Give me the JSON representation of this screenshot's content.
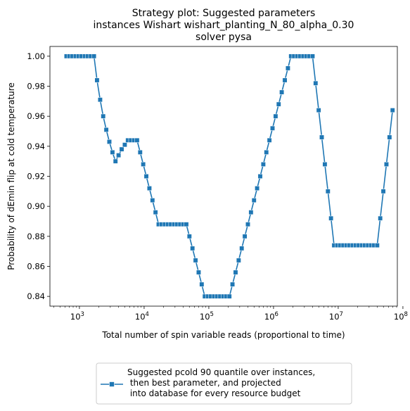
{
  "chart_data": {
    "type": "line",
    "title": [
      "Strategy plot: Suggested parameters",
      "instances Wishart wishart_planting_N_80_alpha_0.30",
      "solver pysa"
    ],
    "xlabel": "Total number of spin variable reads (proportional to time)",
    "ylabel": "Probability of dEmin flip at cold temperature",
    "x_scale": "log",
    "xlim": [
      350,
      82000000
    ],
    "ylim": [
      0.8335,
      1.0065
    ],
    "x_ticks": [
      {
        "value": 1000,
        "base": "10",
        "exp": "3"
      },
      {
        "value": 10000,
        "base": "10",
        "exp": "4"
      },
      {
        "value": 100000,
        "base": "10",
        "exp": "5"
      },
      {
        "value": 1000000,
        "base": "10",
        "exp": "6"
      },
      {
        "value": 10000000,
        "base": "10",
        "exp": "7"
      },
      {
        "value": 100000000,
        "base": "10",
        "exp": "8"
      }
    ],
    "y_ticks": [
      0.84,
      0.86,
      0.88,
      0.9,
      0.92,
      0.94,
      0.96,
      0.98,
      1.0
    ],
    "y_tick_labels": [
      "0.84",
      "0.86",
      "0.88",
      "0.90",
      "0.92",
      "0.94",
      "0.96",
      "0.98",
      "1.00"
    ],
    "grid": false,
    "legend_position": "below-center",
    "series": [
      {
        "name": "Suggested pcold 90 quantile over instances,\n then best parameter, and projected\n into database for every resource budget",
        "color": "#1f77b4",
        "marker": "square",
        "x": [
          630,
          700,
          780,
          870,
          970,
          1080,
          1210,
          1350,
          1500,
          1680,
          1870,
          2090,
          2330,
          2600,
          2900,
          3240,
          3610,
          4030,
          4500,
          5020,
          5600,
          6250,
          6970,
          7780,
          8680,
          9690,
          10810,
          12060,
          13460,
          15010,
          16750,
          18690,
          20850,
          23270,
          25960,
          28970,
          32320,
          36060,
          40240,
          44900,
          50100,
          55900,
          62370,
          69590,
          77650,
          86640,
          96670,
          107900,
          120400,
          134300,
          149800,
          167200,
          186500,
          208100,
          232200,
          259100,
          289100,
          322600,
          359900,
          401600,
          448100,
          500000,
          557900,
          622500,
          694600,
          775000,
          864700,
          964900,
          1077000,
          1201000,
          1340000,
          1496000,
          1669000,
          1862000,
          2077000,
          2318000,
          2586000,
          2886000,
          3220000,
          3593000,
          4009000,
          4473000,
          4991000,
          5569000,
          6214000,
          6933000,
          7736000,
          8632000,
          9631000,
          10750000,
          11990000,
          13380000,
          14930000,
          16660000,
          18590000,
          20740000,
          23140000,
          25820000,
          28810000,
          32150000,
          35870000,
          40020000,
          44650000,
          49820000,
          55590000,
          62030000,
          69210000
        ],
        "y": [
          1.0,
          1.0,
          1.0,
          1.0,
          1.0,
          1.0,
          1.0,
          1.0,
          1.0,
          1.0,
          0.984,
          0.971,
          0.96,
          0.951,
          0.943,
          0.936,
          0.93,
          0.934,
          0.938,
          0.941,
          0.944,
          0.944,
          0.944,
          0.944,
          0.936,
          0.928,
          0.92,
          0.912,
          0.904,
          0.896,
          0.888,
          0.888,
          0.888,
          0.888,
          0.888,
          0.888,
          0.888,
          0.888,
          0.888,
          0.888,
          0.88,
          0.872,
          0.864,
          0.856,
          0.848,
          0.84,
          0.84,
          0.84,
          0.84,
          0.84,
          0.84,
          0.84,
          0.84,
          0.84,
          0.848,
          0.856,
          0.864,
          0.872,
          0.88,
          0.888,
          0.896,
          0.904,
          0.912,
          0.92,
          0.928,
          0.936,
          0.944,
          0.952,
          0.96,
          0.968,
          0.976,
          0.984,
          0.992,
          1.0,
          1.0,
          1.0,
          1.0,
          1.0,
          1.0,
          1.0,
          1.0,
          0.982,
          0.964,
          0.946,
          0.928,
          0.91,
          0.892,
          0.874,
          0.874,
          0.874,
          0.874,
          0.874,
          0.874,
          0.874,
          0.874,
          0.874,
          0.874,
          0.874,
          0.874,
          0.874,
          0.874,
          0.874,
          0.892,
          0.91,
          0.928,
          0.946,
          0.964
        ]
      }
    ]
  }
}
